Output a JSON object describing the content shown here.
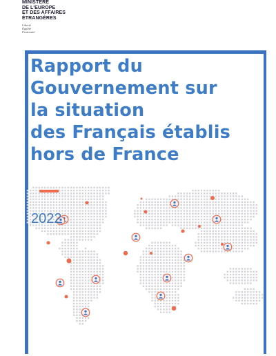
{
  "ministry": {
    "name": "MINISTÈRE\nDE L'EUROPE\nET DES AFFAIRES\nÉTRANGÈRES",
    "motto": "Liberté\nÉgalité\nFraternité"
  },
  "cover": {
    "title": "Rapport du\nGouvernement sur\nla situation\ndes Français établis\nhors de France",
    "year": "2022"
  },
  "colors": {
    "frame": "#3b73c0",
    "title": "#3e7cc6",
    "accent": "#ee6b4d",
    "map_dots": "#d3d3d8",
    "marker_fill": "#f0f4fb",
    "marker_person": "#4a6fb5"
  },
  "map": {
    "person_marker_icon": "person-pin-icon",
    "location_dot_icon": "orange-dot-icon",
    "person_marker_count": 12,
    "location_dot_count": 13
  }
}
